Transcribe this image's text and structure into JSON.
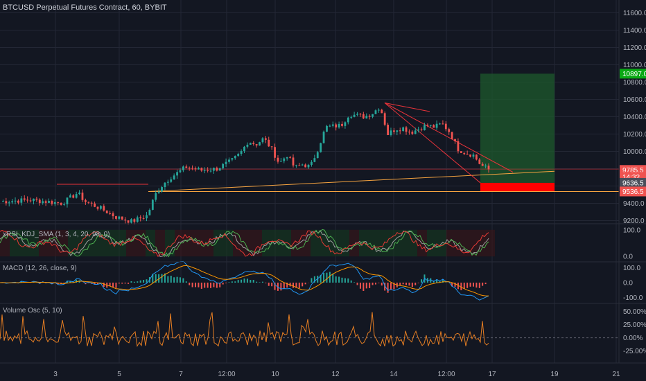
{
  "header": {
    "title": "BTCUSD Perpetual Futures Contract, 60, BYBIT"
  },
  "colors": {
    "background": "#131722",
    "grid": "#232735",
    "axis_text": "#b2b5be",
    "up": "#26a69a",
    "down": "#ef5350",
    "orange": "#f7a440",
    "red_line": "#e8333a",
    "green_zone": "#1e5a2c",
    "red_zone": "#ff0000",
    "macd": "#2196f3",
    "signal": "#ff9800",
    "osc": "#e67e22"
  },
  "chart_data": [
    {
      "type": "candlestick",
      "title": "BTCUSD Perpetual Futures Contract, 60, BYBIT",
      "xlabel": "",
      "ylabel": "",
      "x_ticks": [
        "3",
        "5",
        "7",
        "12:00",
        "10",
        "12",
        "14",
        "12:00",
        "17",
        "19",
        "21"
      ],
      "y_ticks": [
        "11600.0",
        "11400.0",
        "11200.0",
        "11000.0",
        "10800.0",
        "10600.0",
        "10400.0",
        "10200.0",
        "10000.0",
        "9800.0",
        "9600.0",
        "9400.0",
        "9200.0"
      ],
      "ylim": [
        9100,
        11700
      ],
      "close_path": [
        [
          0,
          9420
        ],
        [
          4,
          9440
        ],
        [
          8,
          9400
        ],
        [
          10,
          9520
        ],
        [
          11,
          9420
        ],
        [
          13,
          9340
        ],
        [
          15,
          9240
        ],
        [
          17,
          9190
        ],
        [
          19,
          9260
        ],
        [
          20,
          9500
        ],
        [
          21,
          9620
        ],
        [
          22,
          9700
        ],
        [
          24,
          9820
        ],
        [
          26,
          9780
        ],
        [
          28,
          9800
        ],
        [
          30,
          9900
        ],
        [
          31,
          9980
        ],
        [
          32,
          10120
        ],
        [
          33,
          10080
        ],
        [
          34,
          10150
        ],
        [
          35,
          10030
        ],
        [
          36,
          9860
        ],
        [
          37,
          9960
        ],
        [
          38,
          9810
        ],
        [
          39,
          9850
        ],
        [
          40,
          9820
        ],
        [
          41,
          10030
        ],
        [
          42,
          10280
        ],
        [
          44,
          10300
        ],
        [
          45,
          10430
        ],
        [
          47,
          10400
        ],
        [
          48,
          10440
        ],
        [
          49,
          10520
        ],
        [
          50,
          10200
        ],
        [
          51,
          10260
        ],
        [
          52,
          10270
        ],
        [
          53,
          10220
        ],
        [
          54,
          10260
        ],
        [
          55,
          10300
        ],
        [
          56,
          10280
        ],
        [
          57,
          10320
        ],
        [
          58,
          10220
        ],
        [
          59,
          10030
        ],
        [
          60,
          9980
        ],
        [
          61,
          9960
        ],
        [
          62,
          9840
        ],
        [
          63,
          9790
        ]
      ],
      "price_labels": [
        {
          "text": "10897.0",
          "value": 10897,
          "color": "#0aa814"
        },
        {
          "text": "9785.5",
          "value": 9785.5,
          "color": "#ef5350"
        },
        {
          "text": "14:32",
          "value": 9706,
          "color": "#ef5350"
        },
        {
          "text": "9636.5",
          "value": 9636.5,
          "color": "#4a4e5a"
        },
        {
          "text": "9536.5",
          "value": 9536.5,
          "color": "#ef5350"
        }
      ],
      "position_tool": {
        "entry": 9636.5,
        "target": 10897,
        "stop": 9536.5
      }
    },
    {
      "type": "line",
      "title": "xRSI_KDJ_SMA (1, 3, 4, 20, 98, 0)",
      "y_ticks": [
        "100.0",
        "0.0"
      ],
      "ylim": [
        -10,
        115
      ]
    },
    {
      "type": "line",
      "title": "MACD (12, 26, close, 9)",
      "y_ticks": [
        "100.0",
        "0.0",
        "-100.0"
      ],
      "ylim": [
        -115,
        115
      ]
    },
    {
      "type": "line",
      "title": "Volume Osc (5, 10)",
      "y_ticks": [
        "50.00%",
        "25.00%",
        "0.00%",
        "-25.00%"
      ],
      "ylim": [
        -40,
        60
      ]
    }
  ]
}
